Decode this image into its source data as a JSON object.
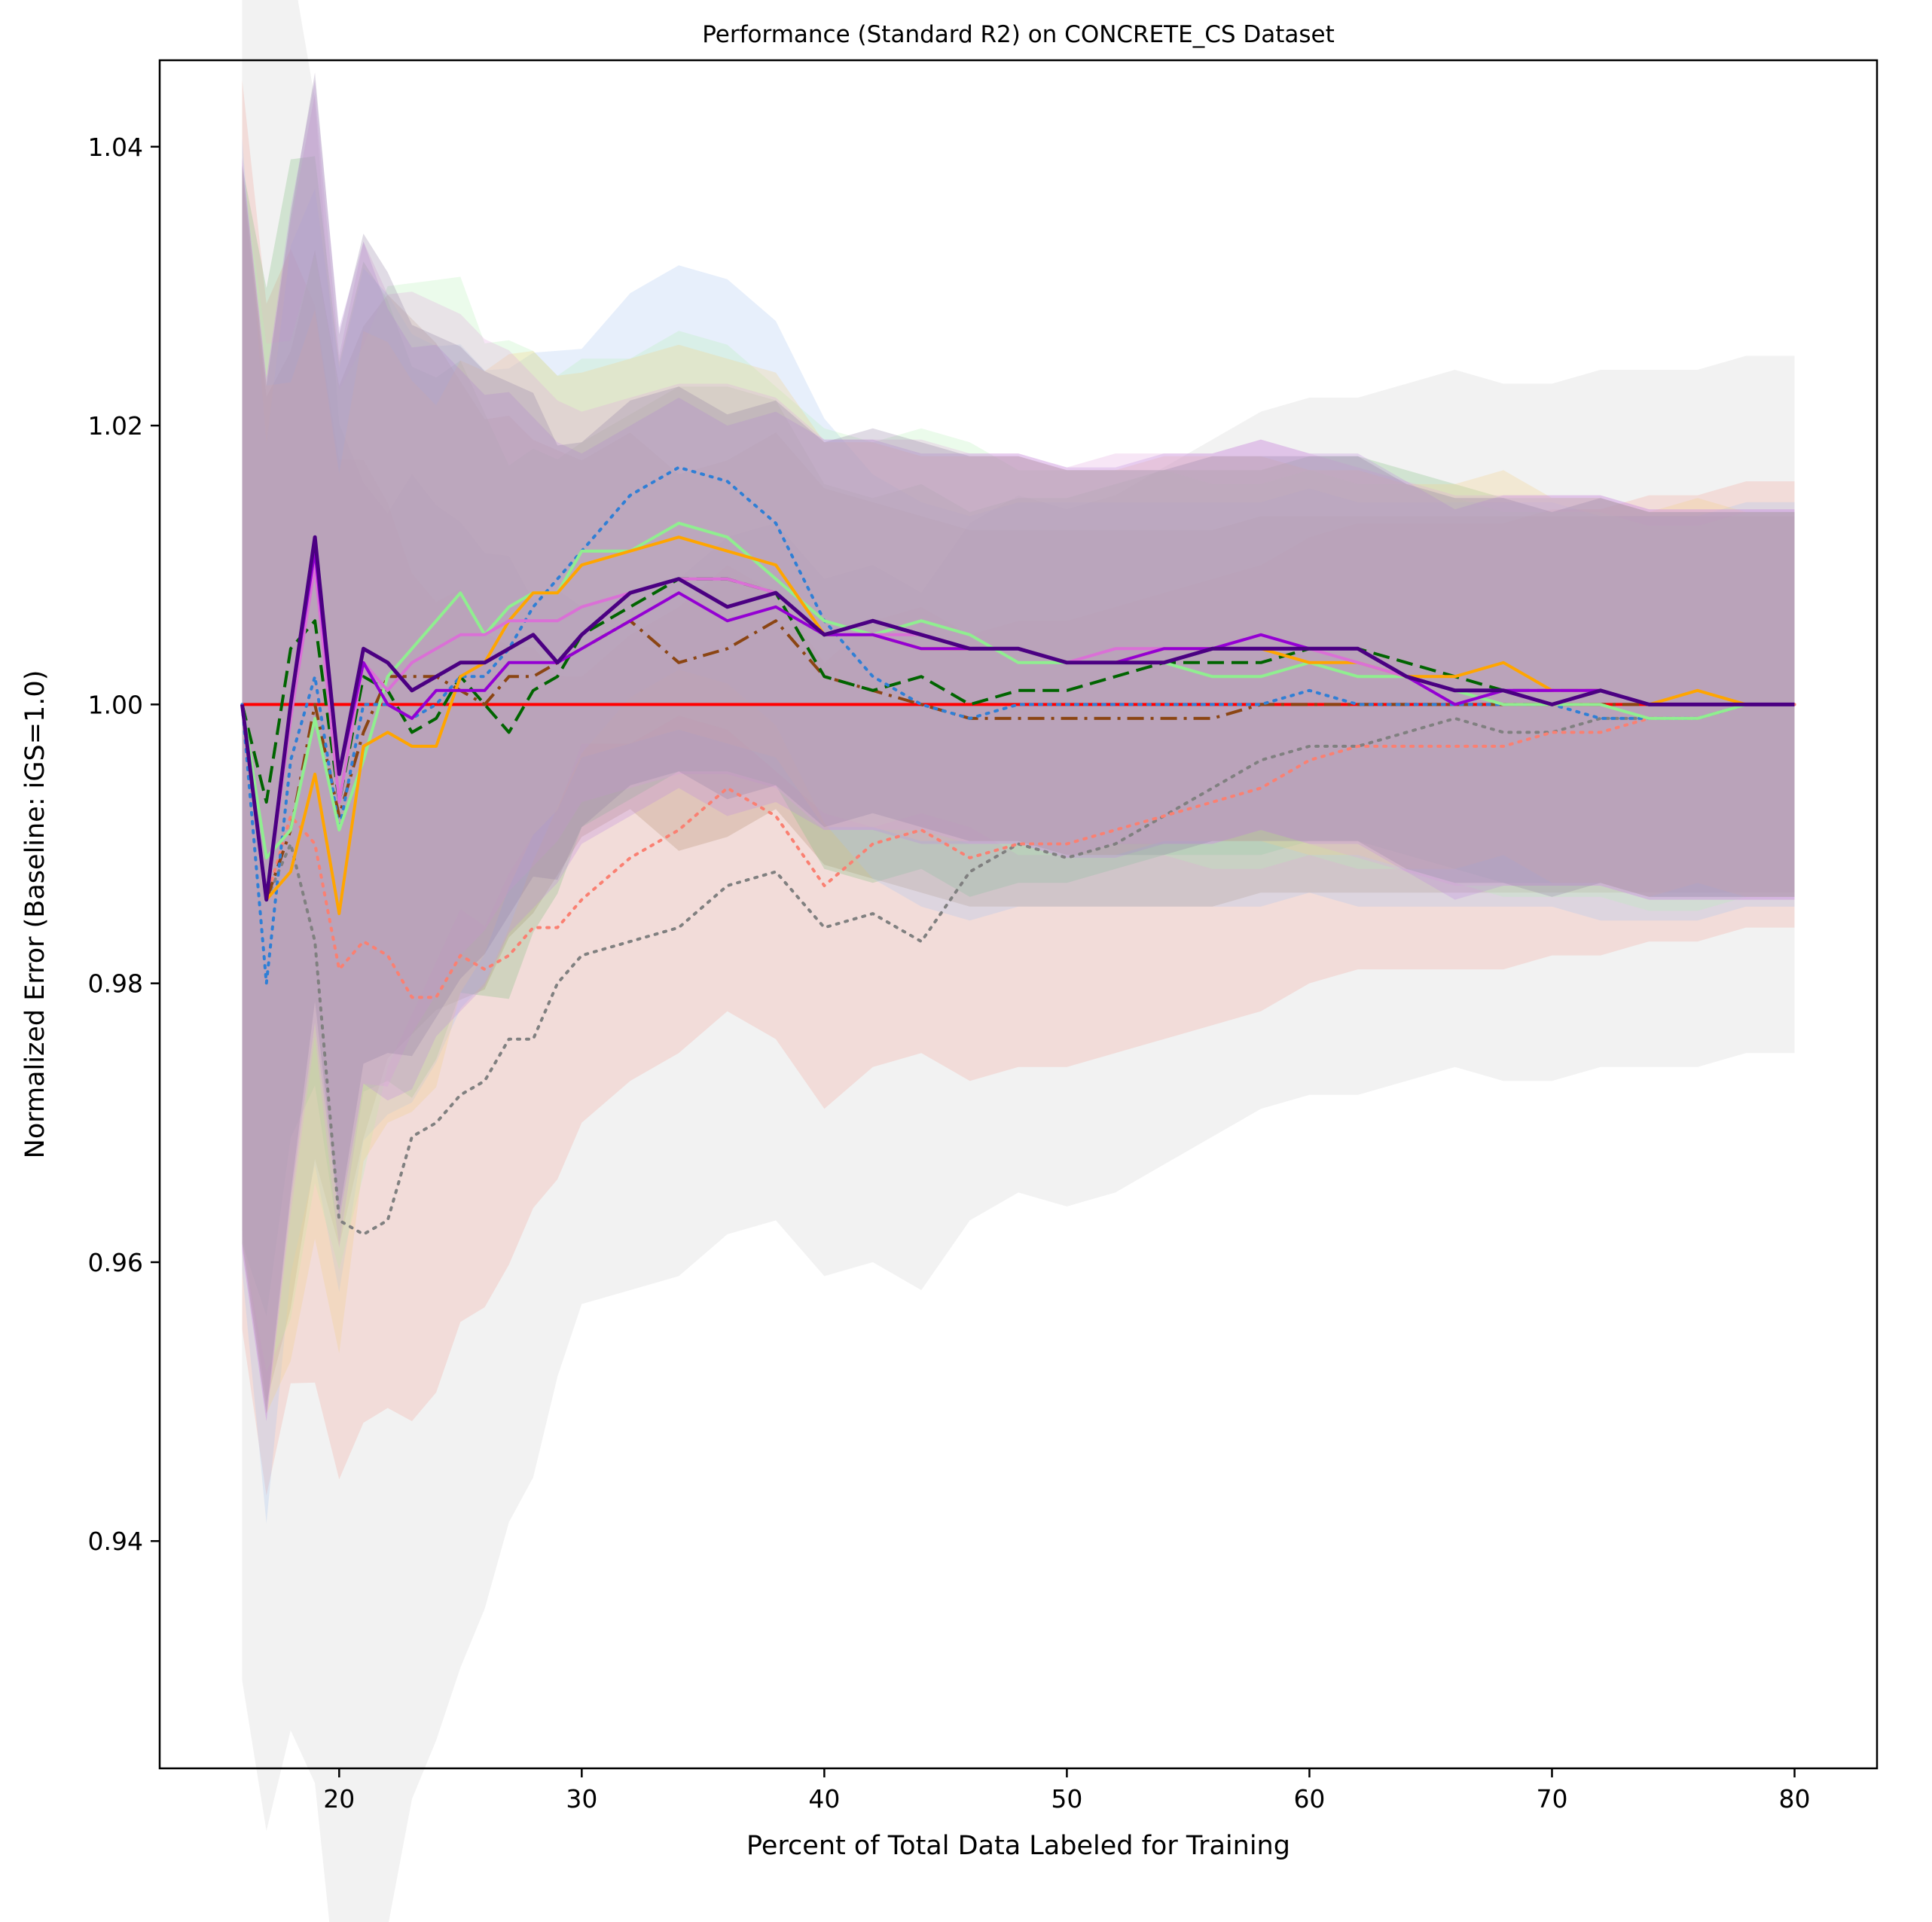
{
  "chart_data": {
    "type": "line",
    "title": "Performance (Standard R2) on CONCRETE_CS Dataset",
    "xlabel": "Percent of Total Data Labeled for Training",
    "ylabel": "Normalized Error (Baseline: iGS=1.0)",
    "xlim": [
      12.6,
      83.4
    ],
    "ylim": [
      0.9237,
      1.0462
    ],
    "xticks": [
      20,
      30,
      40,
      50,
      60,
      70,
      80
    ],
    "yticks": [
      0.94,
      0.96,
      0.98,
      1.0,
      1.02,
      1.04
    ],
    "grid": false,
    "legend": "none",
    "x": [
      16,
      17,
      18,
      19,
      20,
      21,
      22,
      23,
      24,
      25,
      26,
      27,
      28,
      29,
      30,
      32,
      34,
      36,
      38,
      40,
      42,
      44,
      46,
      48,
      50,
      52,
      54,
      56,
      58,
      60,
      62,
      64,
      66,
      68,
      70,
      72,
      74,
      76,
      78,
      80
    ],
    "series": [
      {
        "color": "#ff0000",
        "dash": "solid",
        "width": 4,
        "values": [
          1.0,
          1.0,
          1.0,
          1.0,
          1.0,
          1.0,
          1.0,
          1.0,
          1.0,
          1.0,
          1.0,
          1.0,
          1.0,
          1.0,
          1.0,
          1.0,
          1.0,
          1.0,
          1.0,
          1.0,
          1.0,
          1.0,
          1.0,
          1.0,
          1.0,
          1.0,
          1.0,
          1.0,
          1.0,
          1.0,
          1.0,
          1.0,
          1.0,
          1.0,
          1.0,
          1.0,
          1.0,
          1.0,
          1.0,
          1.0
        ],
        "band": 0
      },
      {
        "color": "#808080",
        "dash": "dotted",
        "width": 4,
        "values": [
          1.0,
          0.986,
          0.99,
          0.983,
          0.963,
          0.962,
          0.963,
          0.969,
          0.97,
          0.972,
          0.973,
          0.976,
          0.976,
          0.98,
          0.982,
          0.983,
          0.984,
          0.987,
          0.988,
          0.984,
          0.985,
          0.983,
          0.988,
          0.99,
          0.989,
          0.99,
          0.992,
          0.994,
          0.996,
          0.997,
          0.997,
          0.998,
          0.999,
          0.998,
          0.998,
          0.999,
          0.999,
          0.999,
          1.0,
          1.0
        ],
        "band": 0.025,
        "band_color": "#d0d0d0"
      },
      {
        "color": "#fa8072",
        "dash": "dotted",
        "width": 4,
        "values": [
          1.0,
          0.986,
          0.992,
          0.99,
          0.981,
          0.983,
          0.982,
          0.979,
          0.979,
          0.982,
          0.981,
          0.982,
          0.984,
          0.984,
          0.986,
          0.989,
          0.991,
          0.994,
          0.992,
          0.987,
          0.99,
          0.991,
          0.989,
          0.99,
          0.99,
          0.991,
          0.992,
          0.993,
          0.994,
          0.996,
          0.997,
          0.997,
          0.997,
          0.997,
          0.998,
          0.998,
          0.999,
          0.999,
          1.0,
          1.0
        ],
        "band": 0.016,
        "band_color": "#f4a79c"
      },
      {
        "color": "#8b4513",
        "dash": "dashdot",
        "width": 4,
        "values": [
          1.0,
          0.986,
          0.991,
          1.0,
          0.992,
          0.998,
          1.002,
          1.002,
          1.002,
          1.001,
          1.0,
          1.002,
          1.002,
          1.003,
          1.004,
          1.006,
          1.003,
          1.004,
          1.006,
          1.002,
          1.001,
          1.0,
          0.999,
          0.999,
          0.999,
          0.999,
          0.999,
          0.999,
          1.0,
          1.0,
          1.0,
          1.0,
          1.0,
          1.0,
          1.0,
          1.0,
          1.0,
          1.0,
          1.0,
          1.0
        ],
        "band": 0.0135,
        "band_color": "#b58d6a"
      },
      {
        "color": "#006400",
        "dash": "dashed",
        "width": 4,
        "values": [
          1.0,
          0.993,
          1.004,
          1.006,
          0.993,
          1.002,
          1.001,
          0.998,
          0.999,
          1.002,
          1.0,
          0.998,
          1.001,
          1.002,
          1.005,
          1.007,
          1.009,
          1.009,
          1.008,
          1.002,
          1.001,
          1.002,
          1.0,
          1.001,
          1.001,
          1.002,
          1.003,
          1.003,
          1.003,
          1.004,
          1.004,
          1.003,
          1.002,
          1.001,
          1.001,
          1.001,
          1.0,
          1.0,
          1.0,
          1.0
        ],
        "band": 0.0138,
        "band_color": "#7fbf7f"
      },
      {
        "color": "#2f7fd6",
        "dash": "dotted",
        "width": 4,
        "values": [
          1.0,
          0.98,
          0.996,
          1.002,
          0.991,
          1.0,
          1.0,
          0.999,
          1.0,
          1.002,
          1.002,
          1.004,
          1.007,
          1.009,
          1.011,
          1.015,
          1.017,
          1.016,
          1.013,
          1.006,
          1.002,
          1.0,
          0.999,
          1.0,
          1.0,
          1.0,
          1.0,
          1.0,
          1.0,
          1.001,
          1.0,
          1.0,
          1.0,
          1.0,
          1.0,
          0.999,
          0.999,
          0.999,
          1.0,
          1.0
        ],
        "band": 0.0145,
        "band_color": "#a9c4f0"
      },
      {
        "color": "#90ee90",
        "dash": "solid",
        "width": 4,
        "values": [
          1.0,
          0.989,
          0.991,
          0.999,
          0.991,
          0.996,
          1.002,
          1.004,
          1.006,
          1.008,
          1.005,
          1.007,
          1.008,
          1.008,
          1.011,
          1.011,
          1.013,
          1.012,
          1.009,
          1.006,
          1.005,
          1.006,
          1.005,
          1.003,
          1.003,
          1.003,
          1.003,
          1.002,
          1.002,
          1.003,
          1.002,
          1.002,
          1.001,
          1.0,
          1.0,
          1.0,
          0.999,
          0.999,
          1.0,
          1.0
        ],
        "band": 0.0138,
        "band_color": "#b6f0b6"
      },
      {
        "color": "#ffa500",
        "dash": "solid",
        "width": 4,
        "values": [
          1.0,
          0.986,
          0.988,
          0.995,
          0.985,
          0.997,
          0.998,
          0.997,
          0.997,
          1.002,
          1.003,
          1.006,
          1.008,
          1.008,
          1.01,
          1.011,
          1.012,
          1.011,
          1.01,
          1.005,
          1.005,
          1.004,
          1.004,
          1.004,
          1.003,
          1.003,
          1.004,
          1.004,
          1.004,
          1.003,
          1.003,
          1.002,
          1.002,
          1.003,
          1.001,
          1.001,
          1.0,
          1.001,
          1.0,
          1.0
        ],
        "band": 0.0138,
        "band_color": "#f5cf86"
      },
      {
        "color": "#da70d6",
        "dash": "solid",
        "width": 4,
        "values": [
          1.0,
          0.986,
          0.999,
          1.01,
          0.993,
          1.003,
          1.001,
          1.003,
          1.004,
          1.005,
          1.005,
          1.006,
          1.006,
          1.006,
          1.007,
          1.008,
          1.009,
          1.009,
          1.008,
          1.005,
          1.005,
          1.005,
          1.004,
          1.004,
          1.003,
          1.004,
          1.004,
          1.004,
          1.005,
          1.004,
          1.003,
          1.002,
          1.001,
          1.001,
          1.001,
          1.001,
          1.0,
          1.0,
          1.0,
          1.0
        ],
        "band": 0.014,
        "band_color": "#e2a5e0"
      },
      {
        "color": "#9400d3",
        "dash": "solid",
        "width": 4,
        "values": [
          1.0,
          0.986,
          1.0,
          1.011,
          0.995,
          1.003,
          1.0,
          0.999,
          1.001,
          1.001,
          1.001,
          1.003,
          1.003,
          1.003,
          1.004,
          1.006,
          1.008,
          1.006,
          1.007,
          1.005,
          1.005,
          1.004,
          1.004,
          1.004,
          1.003,
          1.003,
          1.004,
          1.004,
          1.005,
          1.004,
          1.004,
          1.002,
          1.0,
          1.001,
          1.001,
          1.001,
          1.0,
          1.0,
          1.0,
          1.0
        ],
        "band": 0.014,
        "band_color": "#c08ae0"
      },
      {
        "color": "#4b0082",
        "dash": "solid",
        "width": 5,
        "values": [
          1.0,
          0.986,
          1.0,
          1.012,
          0.995,
          1.004,
          1.003,
          1.001,
          1.002,
          1.003,
          1.003,
          1.004,
          1.005,
          1.003,
          1.005,
          1.008,
          1.009,
          1.007,
          1.008,
          1.005,
          1.006,
          1.005,
          1.004,
          1.004,
          1.003,
          1.003,
          1.003,
          1.004,
          1.004,
          1.004,
          1.004,
          1.002,
          1.001,
          1.001,
          1.0,
          1.001,
          1.0,
          1.0,
          1.0,
          1.0
        ],
        "band": 0.0138,
        "band_color": "#8f7da0"
      }
    ]
  }
}
